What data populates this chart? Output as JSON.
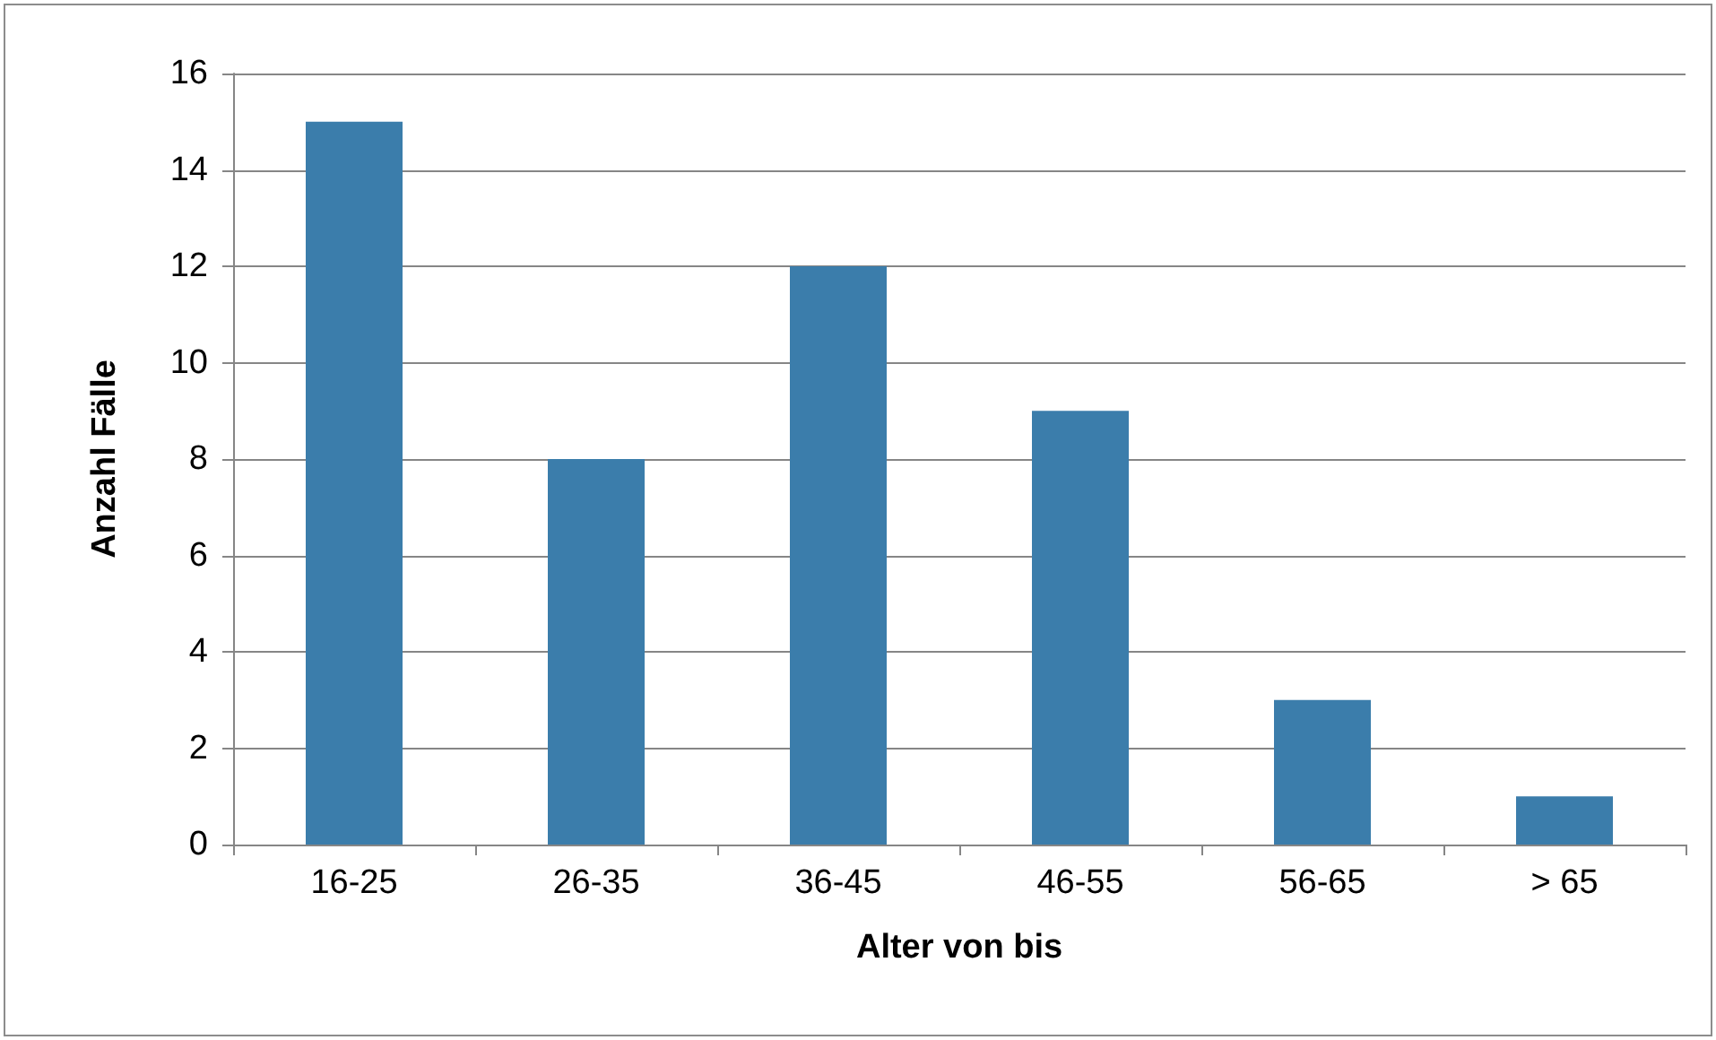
{
  "chart_data": {
    "type": "bar",
    "xlabel": "Alter von bis",
    "ylabel": "Anzahl Fälle",
    "categories": [
      "16-25",
      "26-35",
      "36-45",
      "46-55",
      "56-65",
      "> 65"
    ],
    "values": [
      15,
      8,
      12,
      9,
      3,
      1
    ],
    "color": "#3b7dab",
    "ylim": [
      0,
      16
    ],
    "yticks": [
      0,
      2,
      4,
      6,
      8,
      10,
      12,
      14,
      16
    ],
    "grid": "y"
  }
}
